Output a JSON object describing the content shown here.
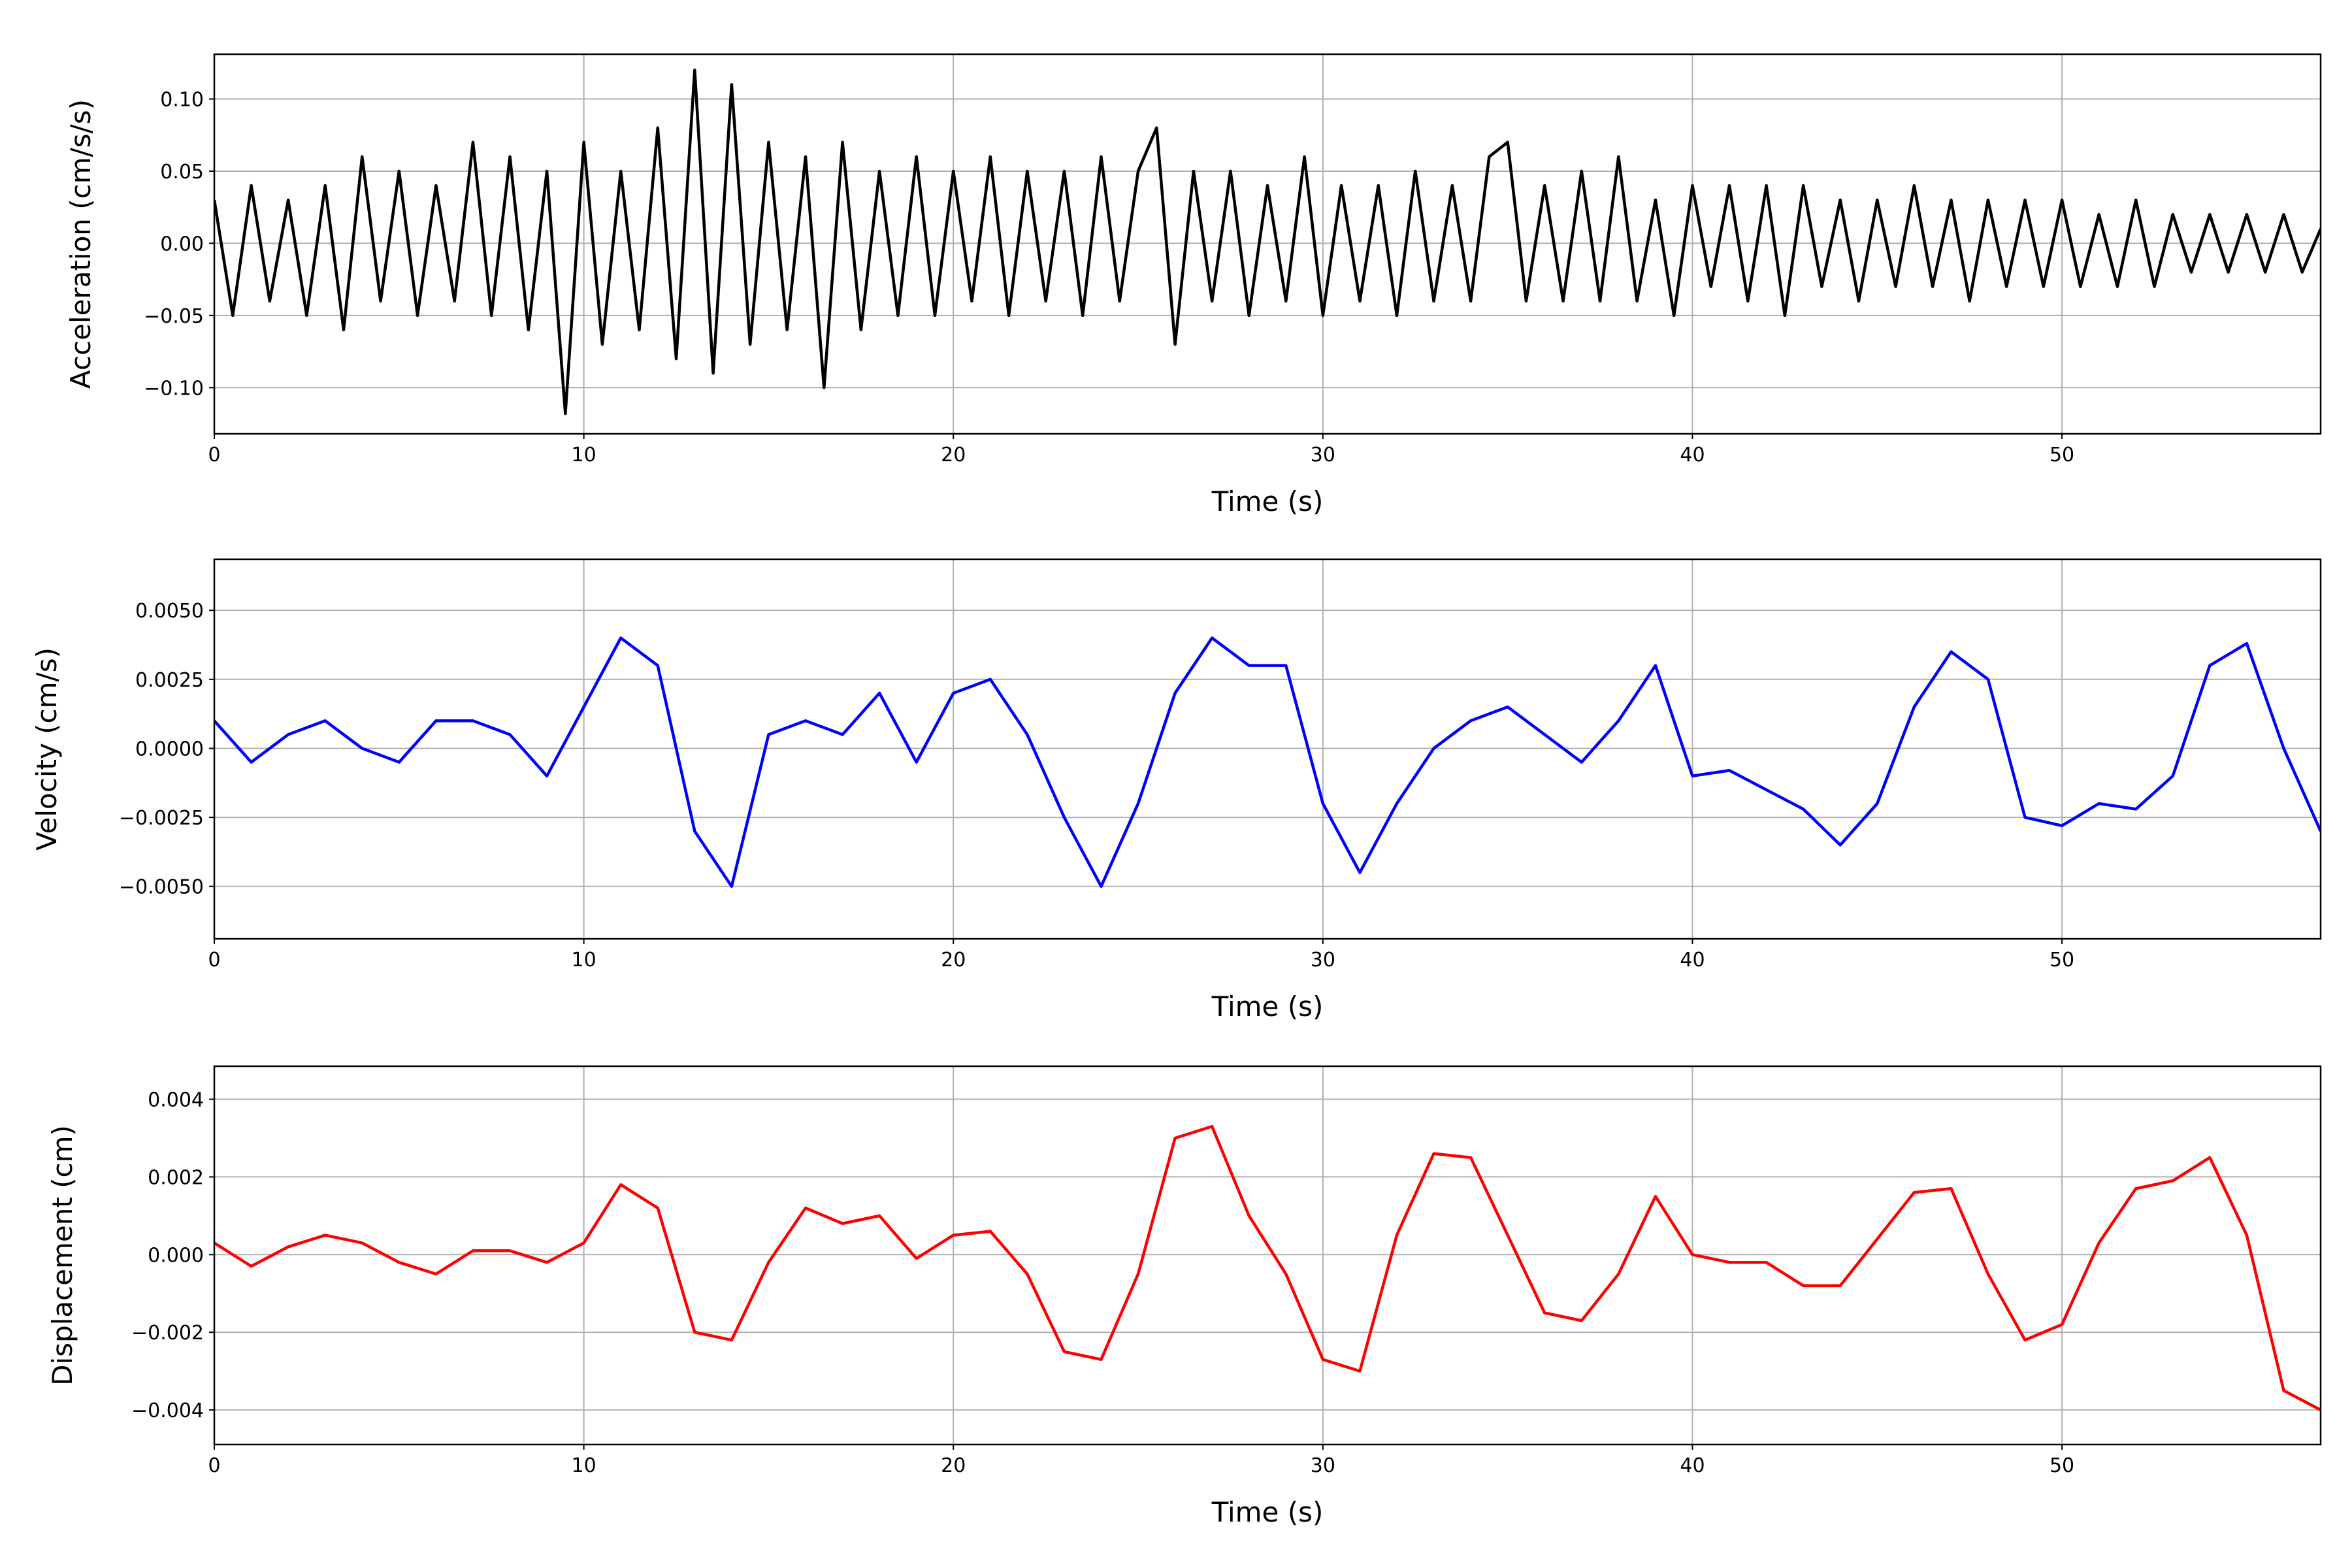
{
  "chart_data": [
    {
      "type": "line",
      "xlabel": "Time (s)",
      "ylabel": "Acceleration (cm/s/s)",
      "color": "#000000",
      "grid": true,
      "xlim": [
        0,
        57
      ],
      "xticks": [
        0,
        10,
        20,
        30,
        40,
        50
      ],
      "ylim": [
        -0.132,
        0.131
      ],
      "yticks": [
        {
          "value": -0.1,
          "label": "−0.10"
        },
        {
          "value": -0.05,
          "label": "−0.05"
        },
        {
          "value": 0,
          "label": "0.00"
        },
        {
          "value": 0.05,
          "label": "0.05"
        },
        {
          "value": 0.1,
          "label": "0.10"
        }
      ],
      "x": [
        0,
        0.5,
        1,
        1.5,
        2,
        2.5,
        3,
        3.5,
        4,
        4.5,
        5,
        5.5,
        6,
        6.5,
        7,
        7.5,
        8,
        8.5,
        9,
        9.5,
        10,
        10.5,
        11,
        11.5,
        12,
        12.5,
        13,
        13.5,
        14,
        14.5,
        15,
        15.5,
        16,
        16.5,
        17,
        17.5,
        18,
        18.5,
        19,
        19.5,
        20,
        20.5,
        21,
        21.5,
        22,
        22.5,
        23,
        23.5,
        24,
        24.5,
        25,
        25.5,
        26,
        26.5,
        27,
        27.5,
        28,
        28.5,
        29,
        29.5,
        30,
        30.5,
        31,
        31.5,
        32,
        32.5,
        33,
        33.5,
        34,
        34.5,
        35,
        35.5,
        36,
        36.5,
        37,
        37.5,
        38,
        38.5,
        39,
        39.5,
        40,
        40.5,
        41,
        41.5,
        42,
        42.5,
        43,
        43.5,
        44,
        44.5,
        45,
        45.5,
        46,
        46.5,
        47,
        47.5,
        48,
        48.5,
        49,
        49.5,
        50,
        50.5,
        51,
        51.5,
        52,
        52.5,
        53,
        53.5,
        54,
        54.5,
        55,
        55.5,
        56,
        56.5,
        57
      ],
      "values": [
        0.03,
        -0.05,
        0.04,
        -0.04,
        0.03,
        -0.05,
        0.04,
        -0.06,
        0.06,
        -0.04,
        0.05,
        -0.05,
        0.04,
        -0.04,
        0.07,
        -0.05,
        0.06,
        -0.06,
        0.05,
        -0.118,
        0.07,
        -0.07,
        0.05,
        -0.06,
        0.08,
        -0.08,
        0.12,
        -0.09,
        0.11,
        -0.07,
        0.07,
        -0.06,
        0.06,
        -0.1,
        0.07,
        -0.06,
        0.05,
        -0.05,
        0.06,
        -0.05,
        0.05,
        -0.04,
        0.06,
        -0.05,
        0.05,
        -0.04,
        0.05,
        -0.05,
        0.06,
        -0.04,
        0.05,
        0.08,
        -0.07,
        0.05,
        -0.04,
        0.05,
        -0.05,
        0.04,
        -0.04,
        0.06,
        -0.05,
        0.04,
        -0.04,
        0.04,
        -0.05,
        0.05,
        -0.04,
        0.04,
        -0.04,
        0.06,
        0.07,
        -0.04,
        0.04,
        -0.04,
        0.05,
        -0.04,
        0.06,
        -0.04,
        0.03,
        -0.05,
        0.04,
        -0.03,
        0.04,
        -0.04,
        0.04,
        -0.05,
        0.04,
        -0.03,
        0.03,
        -0.04,
        0.03,
        -0.03,
        0.04,
        -0.03,
        0.03,
        -0.04,
        0.03,
        -0.03,
        0.03,
        -0.03,
        0.03,
        -0.03,
        0.02,
        -0.03,
        0.03,
        -0.03,
        0.02,
        -0.02,
        0.02,
        -0.02,
        0.02,
        -0.02,
        0.02,
        -0.02,
        0.01
      ]
    },
    {
      "type": "line",
      "xlabel": "Time (s)",
      "ylabel": "Velocity (cm/s)",
      "color": "#0000ff",
      "grid": true,
      "xlim": [
        0,
        57
      ],
      "xticks": [
        0,
        10,
        20,
        30,
        40,
        50
      ],
      "ylim": [
        -0.0069,
        0.00685
      ],
      "yticks": [
        {
          "value": -0.005,
          "label": "−0.0050"
        },
        {
          "value": -0.0025,
          "label": "−0.0025"
        },
        {
          "value": 0,
          "label": "0.0000"
        },
        {
          "value": 0.0025,
          "label": "0.0025"
        },
        {
          "value": 0.005,
          "label": "0.0050"
        }
      ],
      "x": [
        0,
        1,
        2,
        3,
        4,
        5,
        6,
        7,
        8,
        9,
        10,
        11,
        12,
        13,
        14,
        15,
        16,
        17,
        18,
        19,
        20,
        21,
        22,
        23,
        24,
        25,
        26,
        27,
        28,
        29,
        30,
        31,
        32,
        33,
        34,
        35,
        36,
        37,
        38,
        39,
        40,
        41,
        42,
        43,
        44,
        45,
        46,
        47,
        48,
        49,
        50,
        51,
        52,
        53,
        54,
        55,
        56,
        57
      ],
      "values": [
        0.001,
        -0.0005,
        0.0005,
        0.001,
        0,
        -0.0005,
        0.001,
        0.001,
        0.0005,
        -0.001,
        0.0015,
        0.004,
        0.003,
        -0.003,
        -0.005,
        0.0005,
        0.001,
        0.0005,
        0.002,
        -0.0005,
        0.002,
        0.0025,
        0.0005,
        -0.0025,
        -0.005,
        -0.002,
        0.002,
        0.004,
        0.003,
        0.003,
        -0.002,
        -0.0045,
        -0.002,
        0,
        0.001,
        0.0015,
        0.0005,
        -0.0005,
        0.001,
        0.003,
        -0.001,
        -0.0008,
        -0.0015,
        -0.0022,
        -0.0035,
        -0.002,
        0.0015,
        0.0035,
        0.0025,
        -0.0025,
        -0.0028,
        -0.002,
        -0.0022,
        -0.001,
        0.003,
        0.0038,
        0,
        -0.003
      ]
    },
    {
      "type": "line",
      "xlabel": "Time (s)",
      "ylabel": "Displacement (cm)",
      "color": "#ff0000",
      "grid": true,
      "xlim": [
        0,
        57
      ],
      "xticks": [
        0,
        10,
        20,
        30,
        40,
        50
      ],
      "ylim": [
        -0.00489,
        0.00485
      ],
      "yticks": [
        {
          "value": -0.004,
          "label": "−0.004"
        },
        {
          "value": -0.002,
          "label": "−0.002"
        },
        {
          "value": 0,
          "label": "0.000"
        },
        {
          "value": 0.002,
          "label": "0.002"
        },
        {
          "value": 0.004,
          "label": "0.004"
        }
      ],
      "x": [
        0,
        1,
        2,
        3,
        4,
        5,
        6,
        7,
        8,
        9,
        10,
        11,
        12,
        13,
        14,
        15,
        16,
        17,
        18,
        19,
        20,
        21,
        22,
        23,
        24,
        25,
        26,
        27,
        28,
        29,
        30,
        31,
        32,
        33,
        34,
        35,
        36,
        37,
        38,
        39,
        40,
        41,
        42,
        43,
        44,
        45,
        46,
        47,
        48,
        49,
        50,
        51,
        52,
        53,
        54,
        55,
        56,
        57
      ],
      "values": [
        0.0003,
        -0.0003,
        0.0002,
        0.0005,
        0.0003,
        -0.0002,
        -0.0005,
        0.0001,
        0.0001,
        -0.0002,
        0.0003,
        0.0018,
        0.0012,
        -0.002,
        -0.0022,
        -0.0002,
        0.0012,
        0.0008,
        0.001,
        -0.0001,
        0.0005,
        0.0006,
        -0.0005,
        -0.0025,
        -0.0027,
        -0.0005,
        0.003,
        0.0033,
        0.001,
        -0.0005,
        -0.0027,
        -0.003,
        0.0005,
        0.0026,
        0.0025,
        0.0005,
        -0.0015,
        -0.0017,
        -0.0005,
        0.0015,
        0,
        -0.0002,
        -0.0002,
        -0.0008,
        -0.0008,
        0.0004,
        0.0016,
        0.0017,
        -0.0005,
        -0.0022,
        -0.0018,
        0.0003,
        0.0017,
        0.0019,
        0.0025,
        0.0005,
        -0.0035,
        -0.004
      ]
    }
  ]
}
